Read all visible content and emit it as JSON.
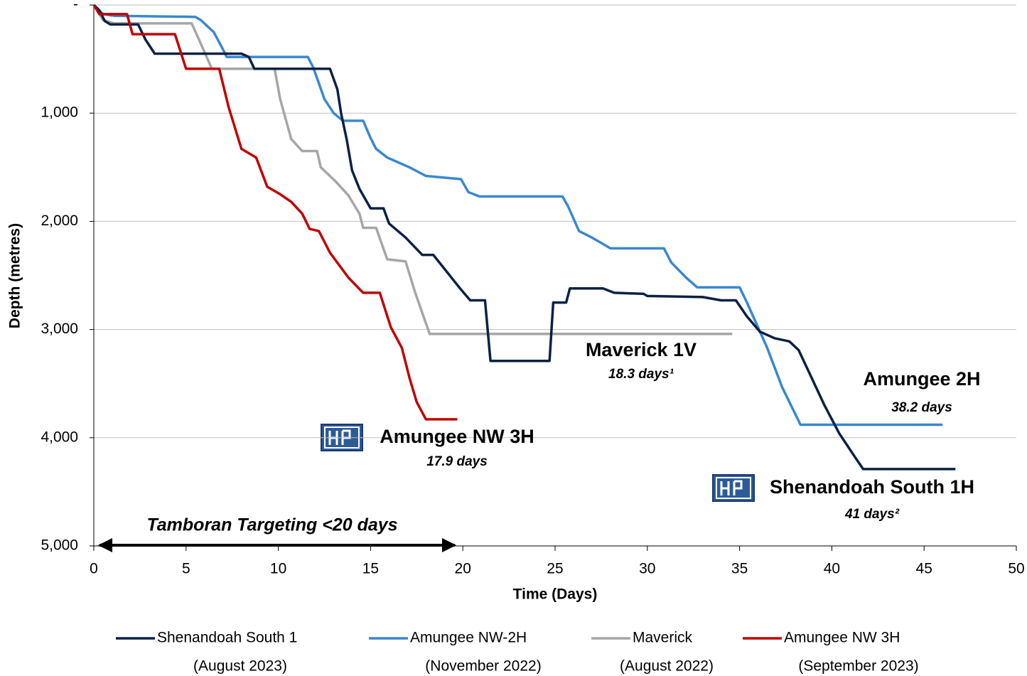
{
  "chart_data": {
    "type": "line",
    "y_axis_label": "Depth (metres)",
    "x_axis_label": "Time (Days)",
    "xlim": [
      0,
      50
    ],
    "xticks": [
      0,
      5,
      10,
      15,
      20,
      25,
      30,
      35,
      40,
      45,
      50
    ],
    "ylim": [
      0,
      5000
    ],
    "y_inverted": true,
    "yticks": [
      {
        "value": 0,
        "label": "-"
      },
      {
        "value": 1000,
        "label": "1,000"
      },
      {
        "value": 2000,
        "label": "2,000"
      },
      {
        "value": 3000,
        "label": "3,000"
      },
      {
        "value": 4000,
        "label": "4,000"
      },
      {
        "value": 5000,
        "label": "5,000"
      }
    ],
    "grid": true,
    "legend_position": "bottom",
    "target_annotation": "Tamboran Targeting  <20 days",
    "series": [
      {
        "name": "Shenandoah South 1",
        "legend_sublabel": "(August 2023)",
        "color": "#0b2145",
        "label": "Shenandoah South 1H",
        "duration_label": "41 days²",
        "x": [
          0,
          0.3,
          0.6,
          0.9,
          2.4,
          2.8,
          3.3,
          8.0,
          8.4,
          8.7,
          12.8,
          13.2,
          13.4,
          13.7,
          14.0,
          14.4,
          15.0,
          15.7,
          16.0,
          16.9,
          17.8,
          18.4,
          19.2,
          19.9,
          20.4,
          21.2,
          21.5,
          24.7,
          24.9,
          25.6,
          25.8,
          27.6,
          28.2,
          29.8,
          30.0,
          33.0,
          34.0,
          34.8,
          35.4,
          36.1,
          36.9,
          37.7,
          38.2,
          39.6,
          40.4,
          41.3,
          41.7,
          46.7
        ],
        "values": [
          0,
          50,
          150,
          180,
          180,
          320,
          450,
          450,
          480,
          590,
          590,
          780,
          1000,
          1240,
          1530,
          1700,
          1880,
          1880,
          2020,
          2150,
          2310,
          2310,
          2480,
          2630,
          2730,
          2730,
          3290,
          3290,
          2750,
          2750,
          2620,
          2620,
          2660,
          2670,
          2690,
          2700,
          2730,
          2730,
          2880,
          3020,
          3080,
          3110,
          3190,
          3700,
          3960,
          4190,
          4290,
          4290
        ]
      },
      {
        "name": "Amungee NW-2H",
        "legend_sublabel": "(November 2022)",
        "color": "#3a87d0",
        "label": "Amungee 2H",
        "duration_label": "38.2 days",
        "x": [
          0,
          0.5,
          1.1,
          5.5,
          5.8,
          6.5,
          7.0,
          7.2,
          11.6,
          11.9,
          12.5,
          13.0,
          13.5,
          14.6,
          15.0,
          15.3,
          15.9,
          17.1,
          18.0,
          19.9,
          20.3,
          20.9,
          25.4,
          25.7,
          26.3,
          27.0,
          28.0,
          30.9,
          31.3,
          32.1,
          32.7,
          35.0,
          35.4,
          36.5,
          37.3,
          38.3,
          46.0
        ],
        "values": [
          0,
          85,
          100,
          110,
          140,
          250,
          410,
          480,
          480,
          580,
          870,
          1000,
          1070,
          1070,
          1230,
          1330,
          1410,
          1500,
          1580,
          1610,
          1730,
          1770,
          1770,
          1860,
          2090,
          2150,
          2250,
          2250,
          2380,
          2520,
          2610,
          2610,
          2750,
          3170,
          3530,
          3880,
          3880
        ]
      },
      {
        "name": "Maverick",
        "legend_sublabel": "(August 2022)",
        "color": "#a6a6a6",
        "label": "Maverick 1V",
        "duration_label": "18.3 days¹",
        "x": [
          0,
          0.5,
          1.1,
          5.3,
          5.7,
          6.4,
          9.8,
          10.1,
          10.7,
          11.3,
          12.1,
          12.3,
          13.1,
          13.8,
          14.4,
          14.6,
          15.3,
          15.9,
          16.9,
          17.4,
          18.2,
          34.6
        ],
        "values": [
          0,
          140,
          170,
          170,
          320,
          590,
          590,
          870,
          1240,
          1350,
          1350,
          1500,
          1630,
          1760,
          1930,
          2060,
          2060,
          2350,
          2370,
          2650,
          3040,
          3040
        ]
      },
      {
        "name": "Amungee NW 3H",
        "legend_sublabel": "(September 2023)",
        "color": "#c00000",
        "label": "Amungee NW 3H",
        "duration_label": "17.9 days",
        "x": [
          0,
          0.3,
          1.8,
          2.1,
          4.4,
          5.0,
          6.8,
          7.3,
          8.0,
          8.8,
          9.4,
          10.1,
          10.7,
          11.3,
          11.7,
          12.2,
          12.8,
          13.8,
          14.6,
          15.5,
          16.1,
          16.7,
          17.1,
          17.5,
          18.0,
          19.7
        ],
        "values": [
          0,
          85,
          85,
          270,
          270,
          590,
          590,
          940,
          1330,
          1410,
          1680,
          1750,
          1820,
          1930,
          2070,
          2090,
          2290,
          2520,
          2660,
          2660,
          2980,
          3170,
          3440,
          3670,
          3830,
          3830
        ]
      }
    ]
  }
}
